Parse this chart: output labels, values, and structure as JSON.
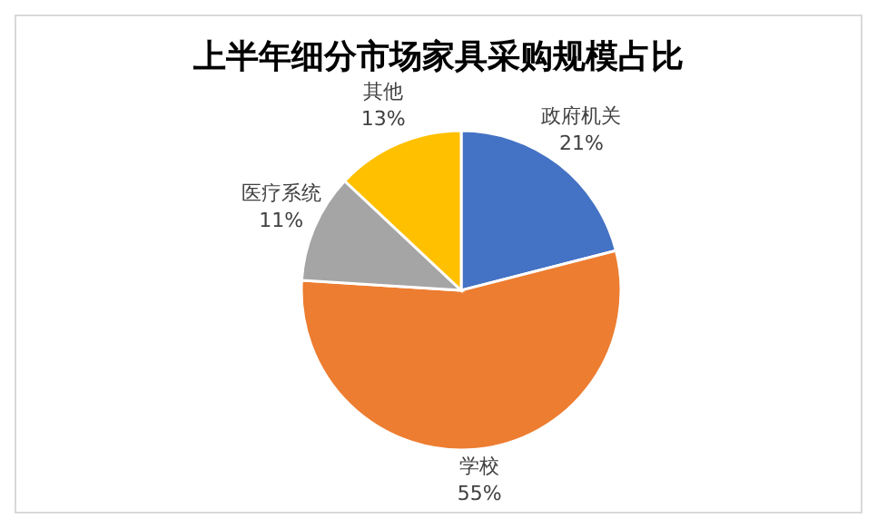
{
  "chart_data": {
    "type": "pie",
    "title": "上半年细分市场家具采购规模占比",
    "categories": [
      "政府机关",
      "学校",
      "医疗系统",
      "其他"
    ],
    "values": [
      21,
      55,
      11,
      13
    ],
    "colors": [
      "#4472c4",
      "#ed7d31",
      "#a5a5a5",
      "#ffc000"
    ],
    "value_labels": [
      "21%",
      "55%",
      "11%",
      "13%"
    ],
    "legend": false
  }
}
